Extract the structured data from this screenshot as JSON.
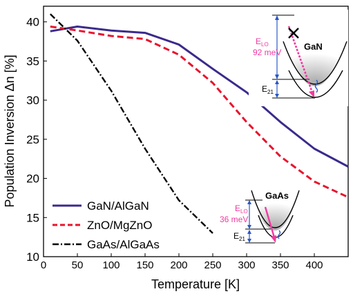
{
  "chart_data": {
    "type": "line",
    "xlabel": "Temperature [K]",
    "ylabel": "Population Inversion Δn [%]",
    "xlim": [
      0,
      450
    ],
    "ylim": [
      10,
      42
    ],
    "xticks": [
      0,
      50,
      100,
      150,
      200,
      250,
      300,
      350,
      400
    ],
    "yticks": [
      10,
      15,
      20,
      25,
      30,
      35,
      40
    ],
    "grid": false,
    "legend_position": "bottom-left",
    "series": [
      {
        "name": "GaN/AlGaN",
        "color": "#3b2a8c",
        "dash": "solid",
        "x": [
          10,
          50,
          100,
          150,
          200,
          250,
          300,
          350,
          400,
          450
        ],
        "y": [
          38.8,
          39.4,
          38.9,
          38.6,
          37.1,
          34.0,
          31.0,
          27.2,
          23.8,
          21.5
        ]
      },
      {
        "name": "ZnO/MgZnO",
        "color": "#e8142d",
        "dash": "dashed",
        "x": [
          10,
          50,
          100,
          150,
          200,
          250,
          300,
          350,
          400,
          450
        ],
        "y": [
          39.4,
          38.9,
          38.2,
          37.8,
          35.8,
          32.2,
          27.2,
          22.8,
          19.6,
          17.6
        ]
      },
      {
        "name": "GaAs/AlGaAs",
        "color": "#000000",
        "dash": "dashdot",
        "x": [
          10,
          50,
          100,
          150,
          200,
          250
        ],
        "y": [
          41.0,
          37.6,
          31.2,
          23.8,
          17.2,
          13.0
        ]
      }
    ],
    "insets": [
      {
        "material": "GaN",
        "elo_label": "E",
        "elo_sub": "LO",
        "energy": "92 meV",
        "e21_label": "E",
        "e21_sub": "21"
      },
      {
        "material": "GaAs",
        "elo_label": "E",
        "elo_sub": "LO",
        "energy": "36 meV",
        "e21_label": "E",
        "e21_sub": "21"
      }
    ]
  }
}
